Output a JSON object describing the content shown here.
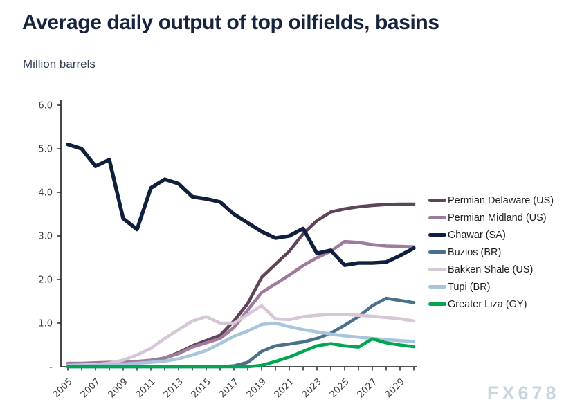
{
  "header": {
    "title": "Average daily output of top oilfields, basins",
    "subtitle": "Million barrels"
  },
  "watermark": "FX678",
  "axis": {
    "y_tick_labels": [
      "-",
      "1.0",
      "2.0",
      "3.0",
      "4.0",
      "5.0",
      "6.0"
    ],
    "x_tick_labels": [
      "2005",
      "2007",
      "2009",
      "2011",
      "2013",
      "2015",
      "2017",
      "2019",
      "2021",
      "2023",
      "2025",
      "2027",
      "2029"
    ]
  },
  "chart_data": {
    "type": "line",
    "title": "Average daily output of top oilfields, basins",
    "xlabel": "",
    "ylabel": "Million barrels",
    "ylim": [
      0,
      6
    ],
    "grid": false,
    "legend_position": "right",
    "x": [
      2005,
      2006,
      2007,
      2008,
      2009,
      2010,
      2011,
      2012,
      2013,
      2014,
      2015,
      2016,
      2017,
      2018,
      2019,
      2020,
      2021,
      2022,
      2023,
      2024,
      2025,
      2026,
      2027,
      2028,
      2029,
      2030
    ],
    "x_tick_labeled_years": [
      2005,
      2007,
      2009,
      2011,
      2013,
      2015,
      2017,
      2019,
      2021,
      2023,
      2025,
      2027,
      2029
    ],
    "y_ticks": [
      0,
      1,
      2,
      3,
      4,
      5,
      6
    ],
    "y_tick_labels": [
      "-",
      "1.0",
      "2.0",
      "3.0",
      "4.0",
      "5.0",
      "6.0"
    ],
    "series": [
      {
        "name": "Permian Delaware (US)",
        "color": "#5d4459",
        "values": [
          0.02,
          0.03,
          0.04,
          0.05,
          0.06,
          0.08,
          0.13,
          0.2,
          0.32,
          0.48,
          0.6,
          0.72,
          1.05,
          1.45,
          2.05,
          2.35,
          2.65,
          3.05,
          3.35,
          3.55,
          3.62,
          3.67,
          3.7,
          3.72,
          3.73,
          3.73
        ]
      },
      {
        "name": "Permian Midland (US)",
        "color": "#9e7a9c",
        "values": [
          0.08,
          0.08,
          0.09,
          0.1,
          0.1,
          0.12,
          0.15,
          0.2,
          0.3,
          0.45,
          0.55,
          0.65,
          0.9,
          1.3,
          1.7,
          1.9,
          2.1,
          2.32,
          2.5,
          2.65,
          2.87,
          2.85,
          2.8,
          2.77,
          2.76,
          2.75
        ]
      },
      {
        "name": "Ghawar (SA)",
        "color": "#101f3c",
        "values": [
          5.1,
          5.0,
          4.6,
          4.75,
          3.4,
          3.15,
          4.1,
          4.3,
          4.2,
          3.9,
          3.85,
          3.78,
          3.5,
          3.3,
          3.1,
          2.95,
          3.0,
          3.17,
          2.6,
          2.67,
          2.33,
          2.38,
          2.38,
          2.4,
          2.55,
          2.72
        ]
      },
      {
        "name": "Buzios (BR)",
        "color": "#4a708c",
        "values": [
          0,
          0,
          0,
          0,
          0,
          0,
          0,
          0,
          0,
          0,
          0,
          0,
          0.02,
          0.1,
          0.35,
          0.48,
          0.52,
          0.57,
          0.65,
          0.77,
          0.95,
          1.15,
          1.4,
          1.57,
          1.52,
          1.47
        ]
      },
      {
        "name": "Bakken Shale (US)",
        "color": "#d7c6d7",
        "values": [
          0.03,
          0.04,
          0.05,
          0.08,
          0.15,
          0.27,
          0.42,
          0.65,
          0.85,
          1.05,
          1.15,
          1.0,
          1.0,
          1.2,
          1.4,
          1.1,
          1.08,
          1.15,
          1.18,
          1.2,
          1.2,
          1.18,
          1.16,
          1.13,
          1.1,
          1.05
        ]
      },
      {
        "name": "Tupi (BR)",
        "color": "#a7c6dc",
        "values": [
          0.02,
          0.02,
          0.03,
          0.04,
          0.06,
          0.08,
          0.1,
          0.13,
          0.18,
          0.27,
          0.37,
          0.53,
          0.7,
          0.82,
          0.97,
          1.0,
          0.92,
          0.85,
          0.8,
          0.75,
          0.71,
          0.68,
          0.65,
          0.62,
          0.6,
          0.58
        ]
      },
      {
        "name": "Greater Liza (GY)",
        "color": "#00a651",
        "values": [
          0,
          0,
          0,
          0,
          0,
          0,
          0,
          0,
          0,
          0,
          0,
          0,
          0,
          0,
          0.03,
          0.12,
          0.22,
          0.35,
          0.48,
          0.53,
          0.48,
          0.45,
          0.64,
          0.55,
          0.5,
          0.46
        ]
      }
    ]
  }
}
